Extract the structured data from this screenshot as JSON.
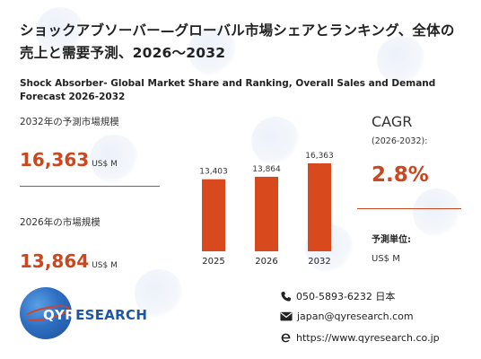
{
  "title_jp": "ショックアブソーバー—グローバル市場シェアとランキング、全体の売上と需要予測、2026～2032",
  "title_en": "Shock Absorber- Global Market Share and Ranking, Overall Sales and Demand Forecast 2026-2032",
  "forecast_label": "2032年の予測市場規模",
  "forecast_value": "16,363",
  "forecast_unit": "US$ M",
  "current_label": "2026年の市場規模",
  "current_value": "13,864",
  "current_unit": "US$ M",
  "chart_data": {
    "type": "bar",
    "categories": [
      "2025",
      "2026",
      "2032"
    ],
    "values": [
      13403,
      13864,
      16363
    ],
    "value_labels": [
      "13,403",
      "13,864",
      "16,363"
    ],
    "color": "#d84a1e",
    "title": "",
    "xlabel": "",
    "ylabel": ""
  },
  "cagr": {
    "label": "CAGR",
    "period": "(2026-2032):",
    "value": "2.8%"
  },
  "unit_label": "予測単位:",
  "unit_value": "US$ M",
  "logo": {
    "prefix": "QYR",
    "suffix": "ESEARCH"
  },
  "contact": {
    "phone": "050-5893-6232 日本",
    "email": "japan@qyresearch.com",
    "website": "https://www.qyresearch.co.jp"
  },
  "colors": {
    "accent": "#c9481f",
    "bar": "#d84a1e",
    "brand_blue": "#1d56a8"
  }
}
